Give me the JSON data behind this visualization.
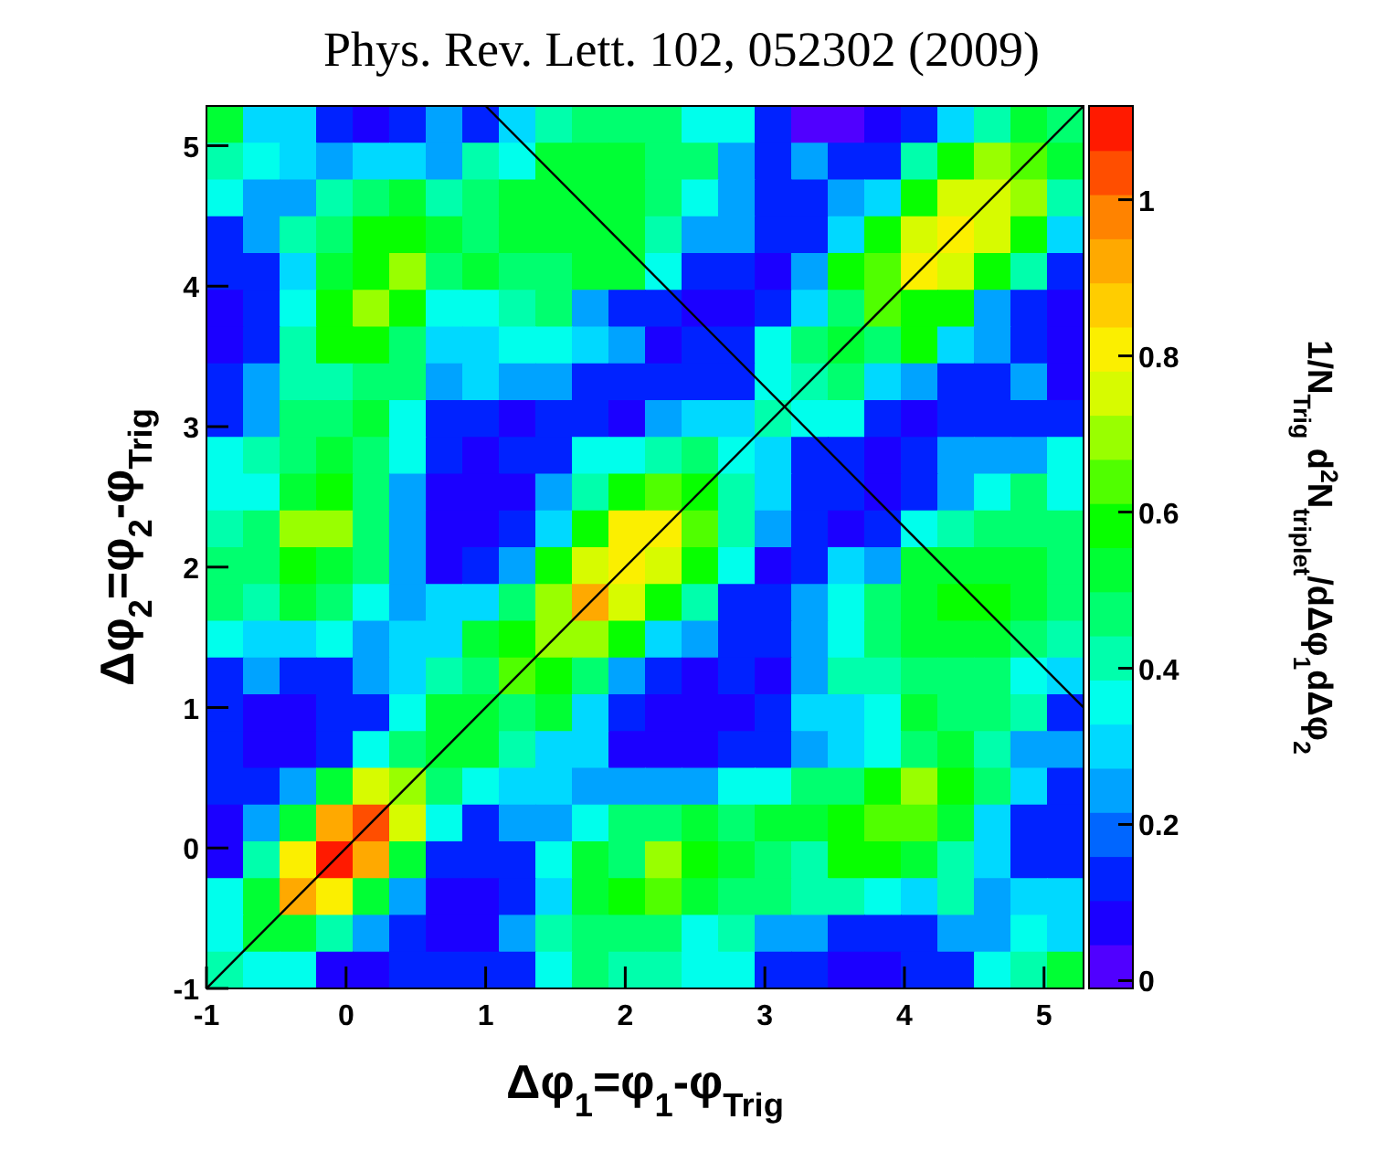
{
  "chart_data": {
    "type": "heatmap",
    "title": "Phys. Rev. Lett. 102, 052302 (2009)",
    "xlabel": "Δφ$_{1}$=φ$_{1}$-φ$_{Trig}$",
    "ylabel": "Δφ$_{2}$=φ$_{2}$-φ$_{Trig}$",
    "clabel": "1/N$_{Trig}$ d$^{2}$N$_{triplet}$/dΔφ$_{1}$dΔφ$_{2}$",
    "xlim": [
      -1,
      5.283
    ],
    "ylim": [
      -1,
      5.283
    ],
    "xticks": [
      -1,
      0,
      1,
      2,
      3,
      4,
      5
    ],
    "yticks": [
      -1,
      0,
      1,
      2,
      3,
      4,
      5
    ],
    "clim": [
      -0.01,
      1.12
    ],
    "cticks": [
      0,
      0.2,
      0.4,
      0.6,
      0.8,
      1
    ],
    "cells": [
      [
        0.5,
        0.28,
        0.28,
        0.15,
        0.1,
        0.15,
        0.22,
        0.15,
        0.28,
        0.4,
        0.46,
        0.46,
        0.46,
        0.34,
        0.34,
        0.15,
        0.04,
        0.04,
        0.08,
        0.11,
        0.28,
        0.4,
        0.55,
        0.46
      ],
      [
        0.4,
        0.34,
        0.28,
        0.22,
        0.28,
        0.28,
        0.22,
        0.4,
        0.34,
        0.52,
        0.52,
        0.55,
        0.46,
        0.46,
        0.22,
        0.11,
        0.22,
        0.15,
        0.15,
        0.4,
        0.58,
        0.7,
        0.66,
        0.55
      ],
      [
        0.34,
        0.22,
        0.22,
        0.4,
        0.46,
        0.5,
        0.4,
        0.46,
        0.52,
        0.52,
        0.55,
        0.55,
        0.46,
        0.34,
        0.22,
        0.15,
        0.15,
        0.22,
        0.28,
        0.58,
        0.76,
        0.76,
        0.7,
        0.4
      ],
      [
        0.12,
        0.22,
        0.4,
        0.46,
        0.58,
        0.58,
        0.52,
        0.46,
        0.52,
        0.55,
        0.55,
        0.55,
        0.4,
        0.22,
        0.22,
        0.11,
        0.15,
        0.28,
        0.58,
        0.78,
        0.82,
        0.78,
        0.58,
        0.28
      ],
      [
        0.12,
        0.15,
        0.28,
        0.52,
        0.58,
        0.72,
        0.46,
        0.52,
        0.46,
        0.46,
        0.52,
        0.52,
        0.34,
        0.11,
        0.11,
        0.08,
        0.22,
        0.58,
        0.62,
        0.8,
        0.76,
        0.58,
        0.4,
        0.11
      ],
      [
        0.05,
        0.11,
        0.34,
        0.58,
        0.72,
        0.58,
        0.34,
        0.34,
        0.4,
        0.46,
        0.22,
        0.15,
        0.15,
        0.05,
        0.05,
        0.15,
        0.28,
        0.46,
        0.66,
        0.58,
        0.58,
        0.22,
        0.15,
        0.08
      ],
      [
        0.08,
        0.15,
        0.4,
        0.58,
        0.58,
        0.46,
        0.28,
        0.28,
        0.34,
        0.34,
        0.28,
        0.22,
        0.06,
        0.11,
        0.11,
        0.34,
        0.46,
        0.52,
        0.46,
        0.58,
        0.28,
        0.22,
        0.15,
        0.05
      ],
      [
        0.12,
        0.22,
        0.4,
        0.4,
        0.46,
        0.46,
        0.22,
        0.28,
        0.22,
        0.22,
        0.11,
        0.13,
        0.15,
        0.11,
        0.15,
        0.34,
        0.4,
        0.46,
        0.28,
        0.22,
        0.15,
        0.15,
        0.22,
        0.07
      ],
      [
        0.15,
        0.22,
        0.46,
        0.46,
        0.52,
        0.34,
        0.15,
        0.11,
        0.08,
        0.15,
        0.11,
        0.08,
        0.22,
        0.28,
        0.28,
        0.4,
        0.34,
        0.34,
        0.15,
        0.08,
        0.11,
        0.15,
        0.11,
        0.15
      ],
      [
        0.34,
        0.4,
        0.46,
        0.52,
        0.46,
        0.34,
        0.11,
        0.05,
        0.12,
        0.15,
        0.34,
        0.37,
        0.4,
        0.46,
        0.34,
        0.28,
        0.15,
        0.11,
        0.05,
        0.11,
        0.22,
        0.22,
        0.22,
        0.34
      ],
      [
        0.34,
        0.34,
        0.52,
        0.58,
        0.46,
        0.22,
        0.08,
        0.05,
        0.08,
        0.22,
        0.4,
        0.58,
        0.66,
        0.58,
        0.4,
        0.28,
        0.11,
        0.11,
        0.05,
        0.11,
        0.22,
        0.34,
        0.46,
        0.34
      ],
      [
        0.4,
        0.46,
        0.7,
        0.7,
        0.46,
        0.22,
        0.08,
        0.05,
        0.11,
        0.28,
        0.58,
        0.8,
        0.82,
        0.66,
        0.4,
        0.22,
        0.15,
        0.08,
        0.15,
        0.34,
        0.4,
        0.46,
        0.46,
        0.46
      ],
      [
        0.46,
        0.46,
        0.58,
        0.5,
        0.46,
        0.22,
        0.08,
        0.15,
        0.22,
        0.58,
        0.76,
        0.8,
        0.74,
        0.58,
        0.34,
        0.08,
        0.11,
        0.28,
        0.22,
        0.52,
        0.55,
        0.55,
        0.55,
        0.46
      ],
      [
        0.46,
        0.4,
        0.52,
        0.46,
        0.34,
        0.22,
        0.28,
        0.28,
        0.46,
        0.68,
        0.95,
        0.78,
        0.58,
        0.4,
        0.15,
        0.11,
        0.22,
        0.34,
        0.46,
        0.55,
        0.58,
        0.58,
        0.52,
        0.46
      ],
      [
        0.34,
        0.28,
        0.28,
        0.34,
        0.22,
        0.28,
        0.28,
        0.52,
        0.6,
        0.7,
        0.7,
        0.58,
        0.28,
        0.22,
        0.11,
        0.15,
        0.22,
        0.34,
        0.46,
        0.52,
        0.55,
        0.52,
        0.46,
        0.4
      ],
      [
        0.12,
        0.22,
        0.15,
        0.12,
        0.22,
        0.28,
        0.4,
        0.46,
        0.66,
        0.58,
        0.46,
        0.22,
        0.11,
        0.08,
        0.11,
        0.08,
        0.22,
        0.4,
        0.4,
        0.46,
        0.46,
        0.46,
        0.34,
        0.28
      ],
      [
        0.15,
        0.08,
        0.05,
        0.11,
        0.11,
        0.34,
        0.52,
        0.5,
        0.46,
        0.52,
        0.28,
        0.15,
        0.05,
        0.05,
        0.05,
        0.11,
        0.28,
        0.28,
        0.34,
        0.52,
        0.46,
        0.46,
        0.4,
        0.15
      ],
      [
        0.12,
        0.08,
        0.05,
        0.15,
        0.34,
        0.46,
        0.52,
        0.5,
        0.4,
        0.28,
        0.28,
        0.08,
        0.08,
        0.08,
        0.11,
        0.15,
        0.22,
        0.28,
        0.34,
        0.46,
        0.52,
        0.4,
        0.22,
        0.22
      ],
      [
        0.12,
        0.12,
        0.22,
        0.55,
        0.78,
        0.68,
        0.46,
        0.34,
        0.28,
        0.28,
        0.22,
        0.22,
        0.22,
        0.22,
        0.34,
        0.34,
        0.46,
        0.46,
        0.58,
        0.7,
        0.58,
        0.46,
        0.28,
        0.15
      ],
      [
        0.08,
        0.22,
        0.52,
        0.95,
        1.02,
        0.78,
        0.34,
        0.11,
        0.22,
        0.22,
        0.34,
        0.46,
        0.46,
        0.52,
        0.46,
        0.52,
        0.52,
        0.58,
        0.66,
        0.62,
        0.55,
        0.28,
        0.11,
        0.12
      ],
      [
        0.08,
        0.4,
        0.82,
        1.08,
        0.95,
        0.52,
        0.15,
        0.11,
        0.11,
        0.34,
        0.52,
        0.46,
        0.68,
        0.6,
        0.52,
        0.46,
        0.4,
        0.58,
        0.58,
        0.52,
        0.4,
        0.28,
        0.15,
        0.15
      ],
      [
        0.34,
        0.52,
        0.9,
        0.8,
        0.52,
        0.22,
        0.05,
        0.05,
        0.15,
        0.28,
        0.55,
        0.6,
        0.64,
        0.55,
        0.46,
        0.46,
        0.4,
        0.4,
        0.34,
        0.28,
        0.4,
        0.22,
        0.28,
        0.28
      ],
      [
        0.34,
        0.52,
        0.52,
        0.4,
        0.22,
        0.11,
        0.08,
        0.08,
        0.22,
        0.4,
        0.46,
        0.46,
        0.46,
        0.34,
        0.4,
        0.22,
        0.22,
        0.15,
        0.11,
        0.15,
        0.22,
        0.22,
        0.34,
        0.28
      ],
      [
        0.4,
        0.34,
        0.34,
        0.08,
        0.08,
        0.11,
        0.11,
        0.15,
        0.11,
        0.34,
        0.46,
        0.4,
        0.4,
        0.34,
        0.34,
        0.15,
        0.11,
        0.08,
        0.05,
        0.11,
        0.11,
        0.34,
        0.4,
        0.52
      ]
    ],
    "series": [
      {
        "type": "line",
        "color": "#000000",
        "x": [
          -1,
          5.283
        ],
        "values": [
          -1,
          5.283
        ]
      },
      {
        "type": "line",
        "color": "#000000",
        "x": [
          1,
          5.283
        ],
        "values": [
          5.283,
          1
        ]
      }
    ]
  }
}
